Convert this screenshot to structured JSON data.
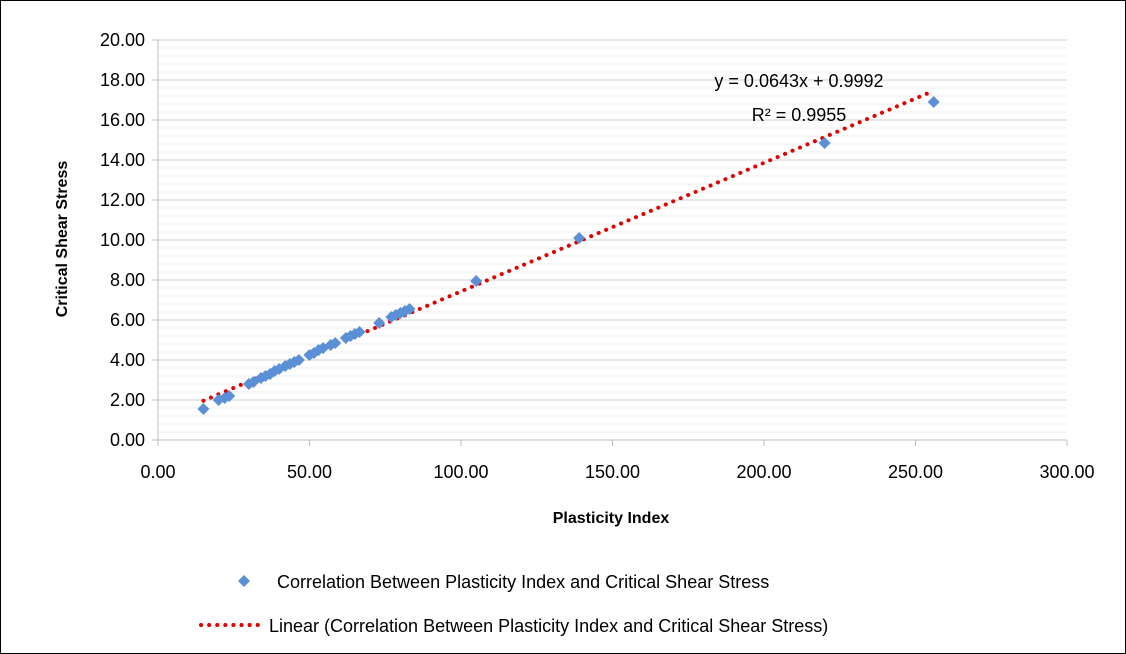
{
  "chart_data": {
    "type": "scatter",
    "xlabel": "Plasticity Index",
    "ylabel": "Critical Shear Stress",
    "xlim": [
      0,
      300
    ],
    "ylim": [
      0,
      20
    ],
    "x_ticks": [
      "0.00",
      "50.00",
      "100.00",
      "150.00",
      "200.00",
      "250.00",
      "300.00"
    ],
    "y_ticks": [
      "0.00",
      "2.00",
      "4.00",
      "6.00",
      "8.00",
      "10.00",
      "12.00",
      "14.00",
      "16.00",
      "18.00",
      "20.00"
    ],
    "y_minor_step": 0.4,
    "grid": true,
    "legend_position": "bottom",
    "series": [
      {
        "name": "Correlation Between Plasticity Index and Critical Shear Stress",
        "marker": "diamond",
        "color": "#5B8FD6",
        "points": [
          [
            15,
            1.55
          ],
          [
            20,
            2.0
          ],
          [
            22,
            2.1
          ],
          [
            23.5,
            2.2
          ],
          [
            30,
            2.8
          ],
          [
            31.5,
            2.9
          ],
          [
            34,
            3.1
          ],
          [
            35.5,
            3.2
          ],
          [
            37,
            3.3
          ],
          [
            38.5,
            3.45
          ],
          [
            40,
            3.55
          ],
          [
            42,
            3.7
          ],
          [
            43.5,
            3.8
          ],
          [
            45,
            3.9
          ],
          [
            46.5,
            4.0
          ],
          [
            50,
            4.25
          ],
          [
            51.5,
            4.35
          ],
          [
            53,
            4.5
          ],
          [
            54.5,
            4.6
          ],
          [
            57,
            4.75
          ],
          [
            58.5,
            4.85
          ],
          [
            62,
            5.1
          ],
          [
            63.5,
            5.2
          ],
          [
            65,
            5.3
          ],
          [
            66.5,
            5.4
          ],
          [
            73,
            5.85
          ],
          [
            77,
            6.15
          ],
          [
            78.5,
            6.25
          ],
          [
            80,
            6.35
          ],
          [
            81.5,
            6.45
          ],
          [
            83,
            6.55
          ],
          [
            105,
            7.95
          ],
          [
            139,
            10.1
          ],
          [
            220,
            14.85
          ],
          [
            256,
            16.9
          ]
        ]
      },
      {
        "name": "Linear (Correlation Between Plasticity Index and Critical Shear Stress)",
        "type": "trendline",
        "color": "#E00000",
        "slope": 0.0643,
        "intercept": 0.9992,
        "x_range": [
          15,
          256
        ]
      }
    ],
    "annotations": [
      "y = 0.0643x + 0.9992",
      "R² = 0.9955"
    ]
  }
}
